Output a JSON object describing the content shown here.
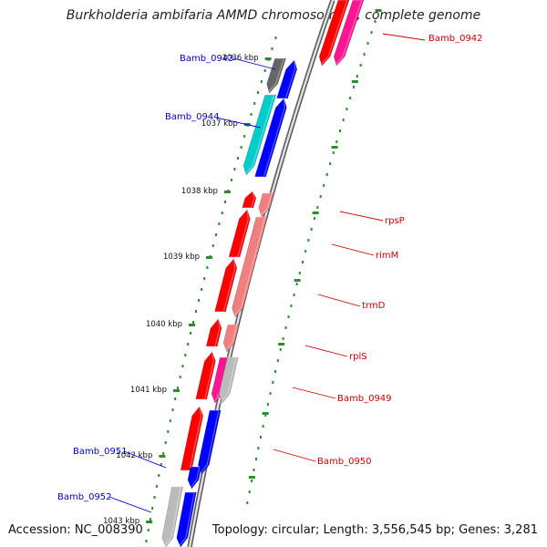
{
  "title": "Burkholderia ambifaria AMMD chromosome 1, complete genome",
  "footer": {
    "accession": "Accession: NC_008390",
    "summary": "Topology: circular; Length: 3,556,545 bp; Genes: 3,281"
  },
  "tick_labels": [
    "1036 kbp",
    "1037 kbp",
    "1038 kbp",
    "1039 kbp",
    "1040 kbp",
    "1041 kbp",
    "1042 kbp",
    "1043 kbp"
  ],
  "colors": {
    "backbone": "#8a8a8a",
    "tick_mark": "#2e8b2e",
    "dot": "#2e8b2e",
    "label_forward": "#0000cc",
    "label_reverse": "#cc0000",
    "gene_red": "#ff0000",
    "gene_pink": "#ff66aa",
    "gene_magenta": "#ff1493",
    "gene_salmon": "#f08080",
    "gene_blue": "#0000ff",
    "gene_gray": "#666666",
    "gene_cyan": "#00cccc",
    "gene_silver": "#bbbbbb"
  },
  "genes": [
    {
      "label": "Bamb_0942",
      "strand": "reverse"
    },
    {
      "label": "Bamb_0943",
      "strand": "forward"
    },
    {
      "label": "Bamb_0944",
      "strand": "forward"
    },
    {
      "label": "rpsP",
      "strand": "reverse"
    },
    {
      "label": "rimM",
      "strand": "reverse"
    },
    {
      "label": "trmD",
      "strand": "reverse"
    },
    {
      "label": "rplS",
      "strand": "reverse"
    },
    {
      "label": "Bamb_0949",
      "strand": "reverse"
    },
    {
      "label": "Bamb_0950",
      "strand": "reverse"
    },
    {
      "label": "Bamb_0951",
      "strand": "forward"
    },
    {
      "label": "Bamb_0952",
      "strand": "forward"
    }
  ]
}
